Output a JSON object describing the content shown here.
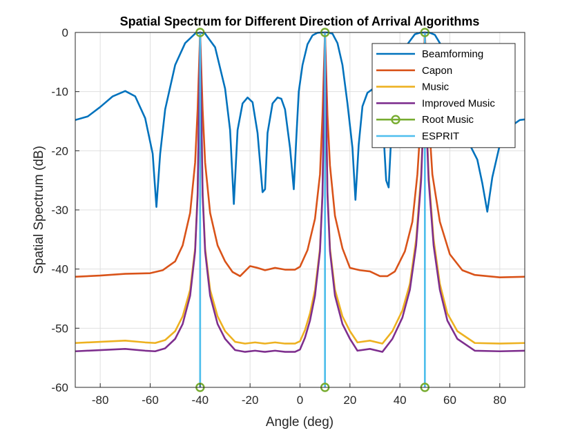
{
  "chart_data": {
    "type": "line",
    "title": "Spatial Spectrum for Different Direction of Arrival Algorithms",
    "xlabel": "Angle (deg)",
    "ylabel": "Spatial Spectrum (dB)",
    "xlim": [
      -90,
      90
    ],
    "ylim": [
      -60,
      0
    ],
    "xticks": [
      -80,
      -60,
      -40,
      -20,
      0,
      20,
      40,
      60,
      80
    ],
    "yticks": [
      0,
      -10,
      -20,
      -30,
      -40,
      -50,
      -60
    ],
    "grid": true,
    "legend_position": "top-right",
    "series": [
      {
        "name": "Beamforming",
        "color": "#0072BD",
        "x": [
          -90,
          -85,
          -80,
          -75,
          -70,
          -66,
          -62,
          -59,
          -57.5,
          -56,
          -54,
          -50,
          -46,
          -42,
          -40,
          -38,
          -34,
          -30,
          -28,
          -26.5,
          -25,
          -23,
          -21,
          -19,
          -17,
          -15,
          -14,
          -13,
          -11,
          -9,
          -7.5,
          -6,
          -4,
          -2.5,
          -1.5,
          -0.5,
          1,
          3,
          5,
          7,
          9,
          10,
          11,
          13,
          15,
          17,
          19,
          21,
          22.2,
          23.5,
          25,
          27,
          29,
          31,
          33,
          34.5,
          35.5,
          37,
          40,
          43,
          46,
          48,
          50,
          52,
          54,
          57,
          60,
          64,
          68,
          71,
          73,
          75,
          77,
          80,
          84,
          88,
          90
        ],
        "y": [
          -14.8,
          -14.2,
          -12.6,
          -10.8,
          -9.9,
          -10.8,
          -14.5,
          -20.5,
          -29.5,
          -20.5,
          -13,
          -5.5,
          -1.8,
          -0.2,
          0,
          -0.2,
          -2.5,
          -9.5,
          -16.5,
          -29,
          -16.5,
          -12,
          -11,
          -11.8,
          -17,
          -27,
          -26.5,
          -17,
          -12,
          -11,
          -11.2,
          -13,
          -19.5,
          -26.5,
          -18,
          -10,
          -5.5,
          -2,
          -0.5,
          -0.05,
          0,
          0,
          0,
          -0.2,
          -1.8,
          -5.5,
          -12,
          -19.5,
          -28.3,
          -19,
          -12.5,
          -10.2,
          -9.6,
          -10.3,
          -13.8,
          -25,
          -26.2,
          -13.5,
          -6,
          -2,
          -0.3,
          -0.05,
          0,
          -0.05,
          -0.4,
          -2.5,
          -6.5,
          -12.5,
          -19,
          -21.5,
          -25.5,
          -30.3,
          -24.5,
          -19,
          -16,
          -14.8,
          -14.7
        ]
      },
      {
        "name": "Capon",
        "color": "#D95319",
        "x": [
          -90,
          -80,
          -70,
          -60,
          -55,
          -50,
          -47,
          -44,
          -42,
          -41,
          -40,
          -39,
          -38,
          -36,
          -33,
          -30,
          -27,
          -24,
          -20,
          -17,
          -14,
          -10,
          -6,
          -2,
          0,
          3,
          6,
          8,
          9,
          10,
          11,
          12,
          14,
          17,
          20,
          24,
          28,
          32,
          35,
          38,
          42,
          45,
          47,
          48.5,
          49.5,
          50,
          50.5,
          51.5,
          53,
          56,
          60,
          65,
          70,
          80,
          90
        ],
        "y": [
          -41.3,
          -41.1,
          -40.8,
          -40.7,
          -40.2,
          -38.7,
          -36,
          -30.5,
          -22,
          -13,
          0,
          -13,
          -22,
          -30.5,
          -36,
          -38.7,
          -40.5,
          -41.2,
          -39.5,
          -39.8,
          -40.2,
          -39.8,
          -40.1,
          -40.1,
          -39.6,
          -36.8,
          -31.5,
          -24,
          -14,
          0,
          -14,
          -22.5,
          -31,
          -36.5,
          -39.8,
          -40.2,
          -40.4,
          -41.2,
          -41.2,
          -40.4,
          -37,
          -32,
          -24,
          -14,
          -5,
          0,
          -5,
          -14,
          -24,
          -32,
          -37.5,
          -40.2,
          -41,
          -41.4,
          -41.3
        ]
      },
      {
        "name": "Music",
        "color": "#EDB120",
        "x": [
          -90,
          -80,
          -70,
          -62,
          -58,
          -54,
          -50,
          -47,
          -44,
          -42,
          -41,
          -40,
          -39,
          -38,
          -36,
          -33,
          -30,
          -26,
          -22,
          -18,
          -14,
          -10,
          -6,
          -2,
          0,
          2,
          4,
          6,
          8,
          9,
          10,
          11,
          12,
          14,
          17,
          20,
          23,
          28,
          33,
          37,
          41,
          44,
          46.5,
          48.5,
          49.5,
          50,
          50.5,
          51.5,
          53.5,
          56,
          59,
          63,
          70,
          80,
          90
        ],
        "y": [
          -52.5,
          -52.3,
          -52.1,
          -52.4,
          -52.5,
          -52,
          -50.5,
          -48,
          -43.5,
          -36.5,
          -27,
          0,
          -27,
          -36.5,
          -43.5,
          -48,
          -50.5,
          -52.3,
          -52.6,
          -52.4,
          -52.6,
          -52.4,
          -52.6,
          -52.6,
          -52.2,
          -50.3,
          -47.5,
          -43.5,
          -36.5,
          -27,
          0,
          -27,
          -36.5,
          -43.5,
          -48,
          -50.5,
          -52.4,
          -52.1,
          -52.6,
          -50.5,
          -47,
          -42.5,
          -35,
          -24,
          -13,
          0,
          -13,
          -24,
          -35,
          -42.5,
          -47.5,
          -50.5,
          -52.5,
          -52.6,
          -52.5
        ]
      },
      {
        "name": "Improved Music",
        "color": "#7E2F8E",
        "x": [
          -90,
          -80,
          -70,
          -62,
          -58,
          -54,
          -50,
          -47,
          -44,
          -42,
          -41,
          -40,
          -39,
          -38,
          -36,
          -33,
          -30,
          -26,
          -22,
          -18,
          -14,
          -10,
          -6,
          -2,
          0,
          2,
          4,
          6,
          8,
          9,
          10,
          11,
          12,
          14,
          17,
          20,
          23,
          28,
          33,
          37,
          41,
          44,
          46.5,
          48.5,
          49.5,
          50,
          50.5,
          51.5,
          53.5,
          56,
          59,
          63,
          70,
          80,
          90
        ],
        "y": [
          -53.9,
          -53.7,
          -53.5,
          -53.8,
          -53.9,
          -53.4,
          -51.8,
          -49.3,
          -44.5,
          -37,
          -27.5,
          0,
          -27.5,
          -37,
          -44.5,
          -49.3,
          -51.8,
          -53.7,
          -54,
          -53.8,
          -54,
          -53.8,
          -54,
          -54,
          -53.6,
          -51.6,
          -48.7,
          -44.5,
          -37,
          -27.5,
          0,
          -27.5,
          -37,
          -44.5,
          -49.3,
          -51.8,
          -53.8,
          -53.5,
          -54,
          -51.8,
          -48.2,
          -43.5,
          -36,
          -25,
          -14,
          0,
          -14,
          -25,
          -36,
          -43.5,
          -48.7,
          -51.8,
          -53.8,
          -53.9,
          -53.8
        ]
      }
    ],
    "root_music": {
      "name": "Root Music",
      "color": "#77AC30",
      "angles": [
        -40,
        10,
        50
      ]
    },
    "esprit": {
      "name": "ESPRIT",
      "color": "#4DBEEE",
      "angles": [
        -40,
        10,
        50
      ]
    }
  }
}
